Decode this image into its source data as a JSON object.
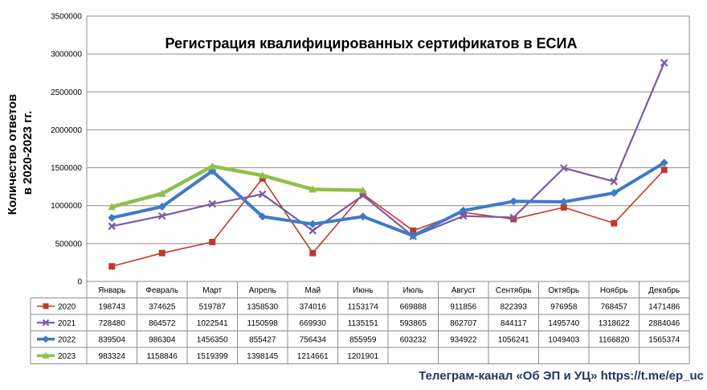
{
  "footer": "Телеграм-канал «Об ЭП и УЦ» https://t.me/ep_uc",
  "chart_data": {
    "type": "line",
    "title": "Регистрация квалифицированных сертификатов в ЕСИА",
    "ylabel_lines": [
      "Количество ответов",
      "в 2020-2023 гг."
    ],
    "xlabel": "",
    "ylim": [
      0,
      3500000
    ],
    "yticks": [
      0,
      500000,
      1000000,
      1500000,
      2000000,
      2500000,
      3000000,
      3500000
    ],
    "grid": true,
    "legend": "data-table-left",
    "categories": [
      "Январь",
      "Февраль",
      "Март",
      "Апрель",
      "Май",
      "Июнь",
      "Июль",
      "Август",
      "Сентябрь",
      "Октябрь",
      "Ноябрь",
      "Декабрь"
    ],
    "series": [
      {
        "name": "2020",
        "color": "#c0392b",
        "marker": "square",
        "values": [
          198743,
          374625,
          519787,
          1358530,
          374016,
          1153174,
          669888,
          911856,
          822393,
          976958,
          768457,
          1471486
        ]
      },
      {
        "name": "2021",
        "color": "#7b5aa6",
        "marker": "cross",
        "values": [
          728480,
          864572,
          1022541,
          1150598,
          669930,
          1135151,
          593865,
          862707,
          844117,
          1495740,
          1318622,
          2884046
        ]
      },
      {
        "name": "2022",
        "color": "#3f7ac9",
        "marker": "diamond",
        "values": [
          839504,
          986304,
          1456350,
          855427,
          756434,
          855959,
          603232,
          934922,
          1056241,
          1049403,
          1166820,
          1565374
        ]
      },
      {
        "name": "2023",
        "color": "#8dc04a",
        "marker": "triangle",
        "values": [
          983324,
          1158846,
          1519399,
          1398145,
          1214661,
          1201901,
          null,
          null,
          null,
          null,
          null,
          null
        ]
      }
    ]
  }
}
